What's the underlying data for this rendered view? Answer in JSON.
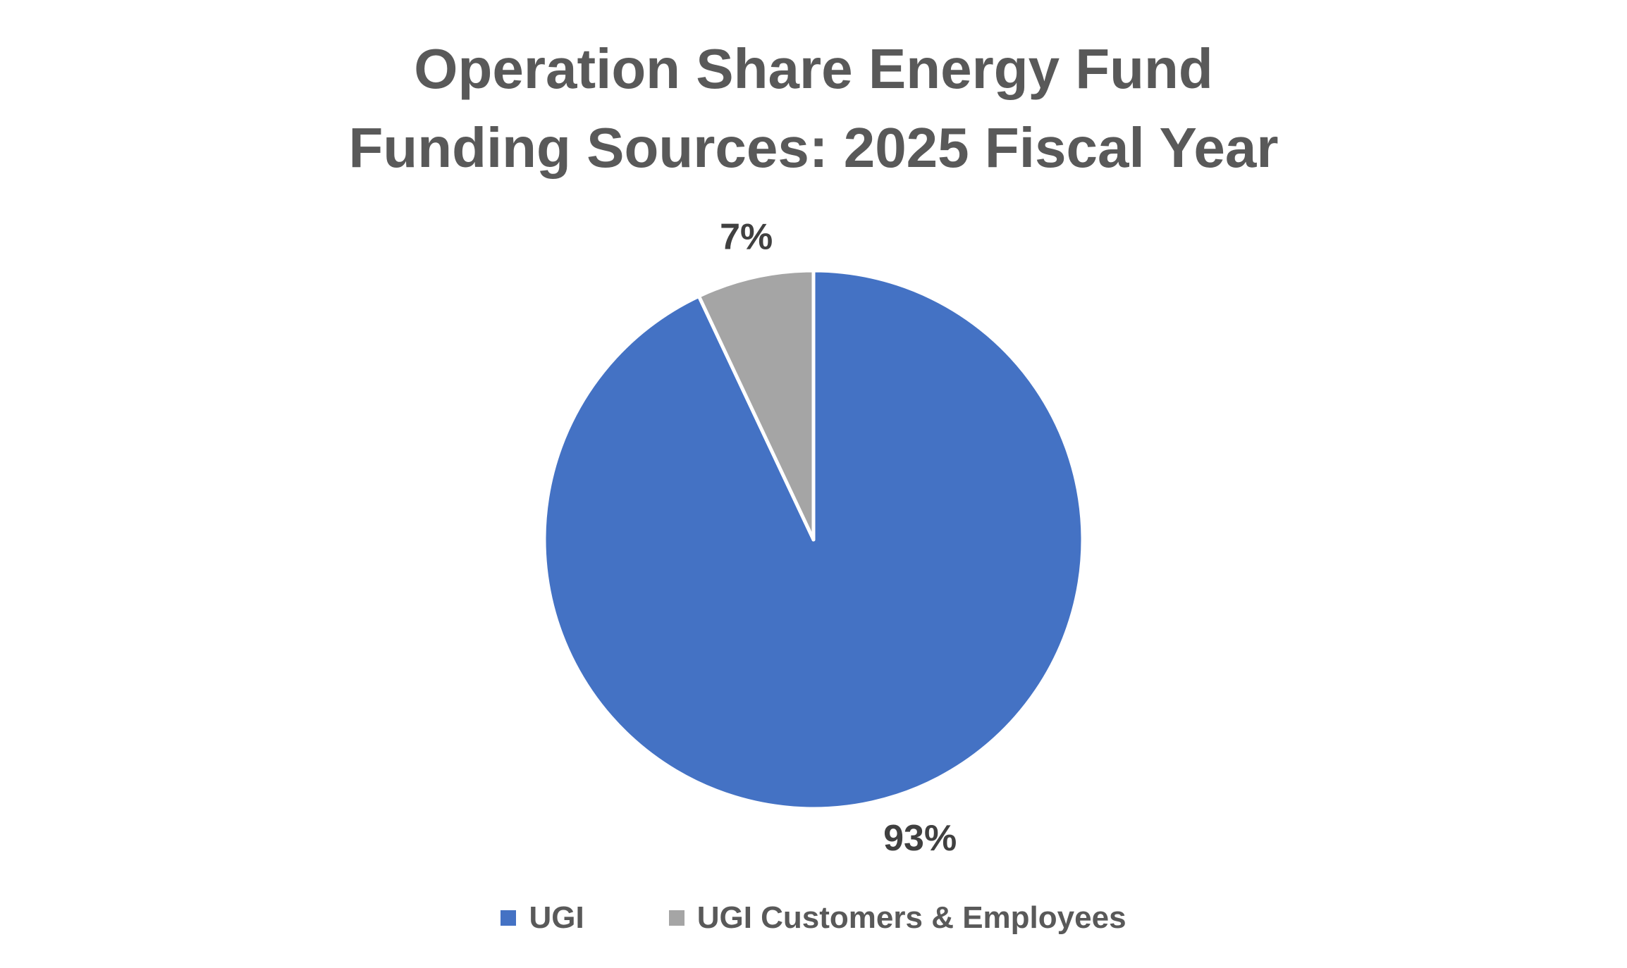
{
  "chart_data": {
    "type": "pie",
    "title": "Operation Share Energy Fund Funding Sources: 2025 Fiscal Year",
    "title_lines": [
      "Operation Share Energy Fund",
      "Funding Sources: 2025 Fiscal Year"
    ],
    "slices": [
      {
        "label": "UGI",
        "value": 93,
        "data_label": "93%",
        "color": "#4472C4"
      },
      {
        "label": "UGI Customers & Employees",
        "value": 7,
        "data_label": "7%",
        "color": "#A5A5A5"
      }
    ],
    "legend_position": "bottom",
    "start_angle": "12 o'clock",
    "direction": "clockwise"
  }
}
